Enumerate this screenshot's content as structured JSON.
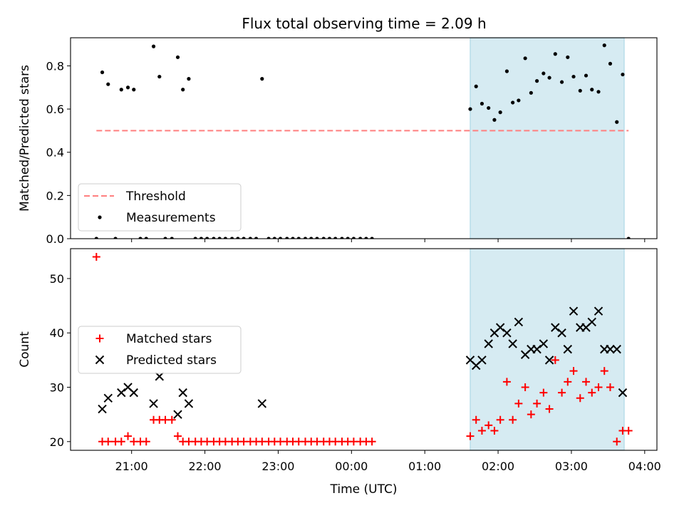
{
  "figure": {
    "title": "Flux total observing time = 2.09 h"
  },
  "colors": {
    "threshold": "#ff7f7f",
    "measurement": "#000000",
    "matched": "#ff0000",
    "predicted": "#000000",
    "shade": "#add8e6"
  },
  "chart_data": [
    {
      "type": "scatter",
      "panel": "top",
      "ylabel": "Matched/Predicted stars",
      "xlabel": "",
      "xlim": [
        20.167,
        28.167
      ],
      "ylim": [
        0.0,
        0.93
      ],
      "yticks": [
        0.0,
        0.2,
        0.4,
        0.6,
        0.8
      ],
      "ytick_labels": [
        "0.0",
        "0.2",
        "0.4",
        "0.6",
        "0.8"
      ],
      "xticks": [
        21,
        22,
        23,
        24,
        25,
        26,
        27,
        28
      ],
      "shaded_region": [
        25.62,
        27.72
      ],
      "threshold": {
        "name": "Threshold",
        "y": 0.5,
        "x": [
          20.52,
          27.78
        ],
        "style": "dashed"
      },
      "legend": {
        "position": "lower-left",
        "entries": [
          "Threshold",
          "Measurements"
        ]
      },
      "series": [
        {
          "name": "Measurements",
          "points": [
            [
              20.52,
              0.0
            ],
            [
              20.6,
              0.77
            ],
            [
              20.68,
              0.715
            ],
            [
              20.78,
              0.0
            ],
            [
              20.86,
              0.69
            ],
            [
              20.95,
              0.7
            ],
            [
              21.03,
              0.69
            ],
            [
              21.12,
              0.0
            ],
            [
              21.2,
              0.0
            ],
            [
              21.3,
              0.89
            ],
            [
              21.38,
              0.75
            ],
            [
              21.46,
              0.0
            ],
            [
              21.55,
              0.0
            ],
            [
              21.63,
              0.84
            ],
            [
              21.7,
              0.69
            ],
            [
              21.78,
              0.74
            ],
            [
              21.87,
              0.0
            ],
            [
              21.95,
              0.0
            ],
            [
              22.03,
              0.0
            ],
            [
              22.12,
              0.0
            ],
            [
              22.2,
              0.0
            ],
            [
              22.28,
              0.0
            ],
            [
              22.37,
              0.0
            ],
            [
              22.45,
              0.0
            ],
            [
              22.53,
              0.0
            ],
            [
              22.62,
              0.0
            ],
            [
              22.7,
              0.0
            ],
            [
              22.78,
              0.74
            ],
            [
              22.87,
              0.0
            ],
            [
              22.95,
              0.0
            ],
            [
              23.03,
              0.0
            ],
            [
              23.12,
              0.0
            ],
            [
              23.2,
              0.0
            ],
            [
              23.28,
              0.0
            ],
            [
              23.37,
              0.0
            ],
            [
              23.45,
              0.0
            ],
            [
              23.53,
              0.0
            ],
            [
              23.62,
              0.0
            ],
            [
              23.7,
              0.0
            ],
            [
              23.78,
              0.0
            ],
            [
              23.87,
              0.0
            ],
            [
              23.95,
              0.0
            ],
            [
              24.03,
              0.0
            ],
            [
              24.12,
              0.0
            ],
            [
              24.2,
              0.0
            ],
            [
              24.28,
              0.0
            ],
            [
              25.62,
              0.6
            ],
            [
              25.7,
              0.705
            ],
            [
              25.78,
              0.625
            ],
            [
              25.87,
              0.605
            ],
            [
              25.95,
              0.55
            ],
            [
              26.03,
              0.585
            ],
            [
              26.12,
              0.775
            ],
            [
              26.2,
              0.63
            ],
            [
              26.28,
              0.64
            ],
            [
              26.37,
              0.835
            ],
            [
              26.45,
              0.675
            ],
            [
              26.53,
              0.73
            ],
            [
              26.62,
              0.765
            ],
            [
              26.7,
              0.745
            ],
            [
              26.78,
              0.855
            ],
            [
              26.87,
              0.725
            ],
            [
              26.95,
              0.84
            ],
            [
              27.03,
              0.75
            ],
            [
              27.12,
              0.685
            ],
            [
              27.2,
              0.755
            ],
            [
              27.28,
              0.69
            ],
            [
              27.37,
              0.68
            ],
            [
              27.45,
              0.895
            ],
            [
              27.53,
              0.81
            ],
            [
              27.62,
              0.54
            ],
            [
              27.7,
              0.76
            ],
            [
              27.78,
              0.0
            ]
          ]
        }
      ]
    },
    {
      "type": "scatter",
      "panel": "bottom",
      "ylabel": "Count",
      "xlabel": "Time (UTC)",
      "xlim": [
        20.167,
        28.167
      ],
      "ylim": [
        18.4,
        55.5
      ],
      "yticks": [
        20,
        30,
        40,
        50
      ],
      "ytick_labels": [
        "20",
        "30",
        "40",
        "50"
      ],
      "xticks": [
        21,
        22,
        23,
        24,
        25,
        26,
        27,
        28
      ],
      "xtick_labels": [
        "21:00",
        "22:00",
        "23:00",
        "00:00",
        "01:00",
        "02:00",
        "03:00",
        "04:00"
      ],
      "shaded_region": [
        25.62,
        27.72
      ],
      "legend": {
        "position": "center-left",
        "entries": [
          "Matched stars",
          "Predicted stars"
        ]
      },
      "series": [
        {
          "name": "Matched stars",
          "marker": "plus",
          "points": [
            [
              20.52,
              54
            ],
            [
              20.6,
              20
            ],
            [
              20.68,
              20
            ],
            [
              20.78,
              20
            ],
            [
              20.86,
              20
            ],
            [
              20.95,
              21
            ],
            [
              21.03,
              20
            ],
            [
              21.12,
              20
            ],
            [
              21.2,
              20
            ],
            [
              21.3,
              24
            ],
            [
              21.38,
              24
            ],
            [
              21.46,
              24
            ],
            [
              21.55,
              24
            ],
            [
              21.63,
              21
            ],
            [
              21.7,
              20
            ],
            [
              21.78,
              20
            ],
            [
              21.87,
              20
            ],
            [
              21.95,
              20
            ],
            [
              22.03,
              20
            ],
            [
              22.12,
              20
            ],
            [
              22.2,
              20
            ],
            [
              22.28,
              20
            ],
            [
              22.37,
              20
            ],
            [
              22.45,
              20
            ],
            [
              22.53,
              20
            ],
            [
              22.62,
              20
            ],
            [
              22.7,
              20
            ],
            [
              22.78,
              20
            ],
            [
              22.87,
              20
            ],
            [
              22.95,
              20
            ],
            [
              23.03,
              20
            ],
            [
              23.12,
              20
            ],
            [
              23.2,
              20
            ],
            [
              23.28,
              20
            ],
            [
              23.37,
              20
            ],
            [
              23.45,
              20
            ],
            [
              23.53,
              20
            ],
            [
              23.62,
              20
            ],
            [
              23.7,
              20
            ],
            [
              23.78,
              20
            ],
            [
              23.87,
              20
            ],
            [
              23.95,
              20
            ],
            [
              24.03,
              20
            ],
            [
              24.12,
              20
            ],
            [
              24.2,
              20
            ],
            [
              24.28,
              20
            ],
            [
              25.62,
              21
            ],
            [
              25.7,
              24
            ],
            [
              25.78,
              22
            ],
            [
              25.87,
              23
            ],
            [
              25.95,
              22
            ],
            [
              26.03,
              24
            ],
            [
              26.12,
              31
            ],
            [
              26.2,
              24
            ],
            [
              26.28,
              27
            ],
            [
              26.37,
              30
            ],
            [
              26.45,
              25
            ],
            [
              26.53,
              27
            ],
            [
              26.62,
              29
            ],
            [
              26.7,
              26
            ],
            [
              26.78,
              35
            ],
            [
              26.87,
              29
            ],
            [
              26.95,
              31
            ],
            [
              27.03,
              33
            ],
            [
              27.12,
              28
            ],
            [
              27.2,
              31
            ],
            [
              27.28,
              29
            ],
            [
              27.37,
              30
            ],
            [
              27.45,
              33
            ],
            [
              27.53,
              30
            ],
            [
              27.62,
              20
            ],
            [
              27.7,
              22
            ],
            [
              27.78,
              22
            ]
          ]
        },
        {
          "name": "Predicted stars",
          "marker": "x",
          "points": [
            [
              20.6,
              26
            ],
            [
              20.68,
              28
            ],
            [
              20.86,
              29
            ],
            [
              20.95,
              30
            ],
            [
              21.03,
              29
            ],
            [
              21.3,
              27
            ],
            [
              21.38,
              32
            ],
            [
              21.63,
              25
            ],
            [
              21.7,
              29
            ],
            [
              21.78,
              27
            ],
            [
              22.78,
              27
            ],
            [
              25.62,
              35
            ],
            [
              25.7,
              34
            ],
            [
              25.78,
              35
            ],
            [
              25.87,
              38
            ],
            [
              25.95,
              40
            ],
            [
              26.03,
              41
            ],
            [
              26.12,
              40
            ],
            [
              26.2,
              38
            ],
            [
              26.28,
              42
            ],
            [
              26.37,
              36
            ],
            [
              26.45,
              37
            ],
            [
              26.53,
              37
            ],
            [
              26.62,
              38
            ],
            [
              26.7,
              35
            ],
            [
              26.78,
              41
            ],
            [
              26.87,
              40
            ],
            [
              26.95,
              37
            ],
            [
              27.03,
              44
            ],
            [
              27.12,
              41
            ],
            [
              27.2,
              41
            ],
            [
              27.28,
              42
            ],
            [
              27.37,
              44
            ],
            [
              27.45,
              37
            ],
            [
              27.53,
              37
            ],
            [
              27.62,
              37
            ],
            [
              27.7,
              29
            ]
          ]
        }
      ]
    }
  ]
}
